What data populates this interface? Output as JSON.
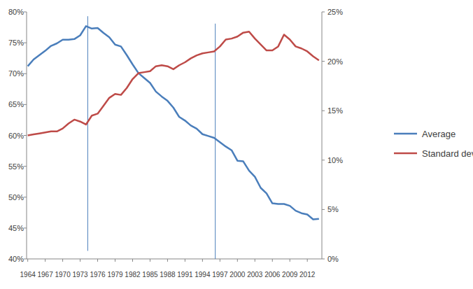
{
  "chart_data": {
    "type": "line",
    "x": [
      1964,
      1965,
      1966,
      1967,
      1968,
      1969,
      1970,
      1971,
      1972,
      1973,
      1974,
      1975,
      1976,
      1977,
      1978,
      1979,
      1980,
      1981,
      1982,
      1983,
      1984,
      1985,
      1986,
      1987,
      1988,
      1989,
      1990,
      1991,
      1992,
      1993,
      1994,
      1995,
      1996,
      1997,
      1998,
      1999,
      2000,
      2001,
      2002,
      2003,
      2004,
      2005,
      2006,
      2007,
      2008,
      2009,
      2010,
      2011,
      2012,
      2013,
      2014
    ],
    "series": [
      {
        "name": "Average",
        "color": "#4a7ebb",
        "values": [
          71.2,
          72.3,
          73,
          73.7,
          74.5,
          74.9,
          75.5,
          75.5,
          75.6,
          76.2,
          77.7,
          77.3,
          77.4,
          76.6,
          75.9,
          74.7,
          74.4,
          73,
          71.5,
          70.1,
          69.3,
          68.5,
          67.1,
          66.3,
          65.6,
          64.5,
          63,
          62.4,
          61.6,
          61.1,
          60.2,
          59.9,
          59.6,
          58.9,
          58.2,
          57.6,
          55.9,
          55.8,
          54.3,
          53.3,
          51.5,
          50.6,
          49,
          48.9,
          48.9,
          48.6,
          47.8,
          47.4,
          47.2,
          46.4,
          46.5
        ]
      },
      {
        "name": "Standard deviation",
        "color": "#be4b48",
        "axis": "y2",
        "values": [
          12.5,
          12.6,
          12.7,
          12.8,
          12.9,
          12.9,
          13.2,
          13.7,
          14.1,
          13.9,
          13.6,
          14.5,
          14.7,
          15.5,
          16.3,
          16.7,
          16.6,
          17.3,
          18.2,
          18.8,
          18.9,
          19,
          19.5,
          19.6,
          19.5,
          19.2,
          19.6,
          19.9,
          20.3,
          20.6,
          20.8,
          20.9,
          21,
          21.5,
          22.2,
          22.3,
          22.5,
          22.9,
          23,
          22.3,
          21.7,
          21.1,
          21.1,
          21.5,
          22.7,
          22.2,
          21.5,
          21.3,
          21,
          20.5,
          20.1
        ]
      }
    ],
    "xlim": [
      1963.8,
      2014.5
    ],
    "xticks": [
      1964,
      1967,
      1970,
      1973,
      1976,
      1979,
      1982,
      1985,
      1988,
      1991,
      1994,
      1997,
      2000,
      2003,
      2006,
      2009,
      2012
    ],
    "ylim": [
      40,
      80
    ],
    "yticks": [
      {
        "value": 40,
        "label": "40%"
      },
      {
        "value": 45,
        "label": "45%"
      },
      {
        "value": 50,
        "label": "50%"
      },
      {
        "value": 55,
        "label": "55%"
      },
      {
        "value": 60,
        "label": "60%"
      },
      {
        "value": 65,
        "label": "65%"
      },
      {
        "value": 70,
        "label": "70%"
      },
      {
        "value": 75,
        "label": "75%"
      },
      {
        "value": 80,
        "label": "80%"
      }
    ],
    "y2lim": [
      0,
      25
    ],
    "y2ticks": [
      {
        "value": 0,
        "label": "0%"
      },
      {
        "value": 5,
        "label": "5%"
      },
      {
        "value": 10,
        "label": "10%"
      },
      {
        "value": 15,
        "label": "15%"
      },
      {
        "value": 20,
        "label": "20%"
      },
      {
        "value": 25,
        "label": "25%"
      }
    ],
    "reference_lines": [
      {
        "x": 1974.3,
        "y": [
          41.3,
          79.3
        ]
      },
      {
        "x": 1996.2,
        "y": [
          40,
          78.1
        ]
      }
    ],
    "grid": false,
    "legend": "right"
  }
}
